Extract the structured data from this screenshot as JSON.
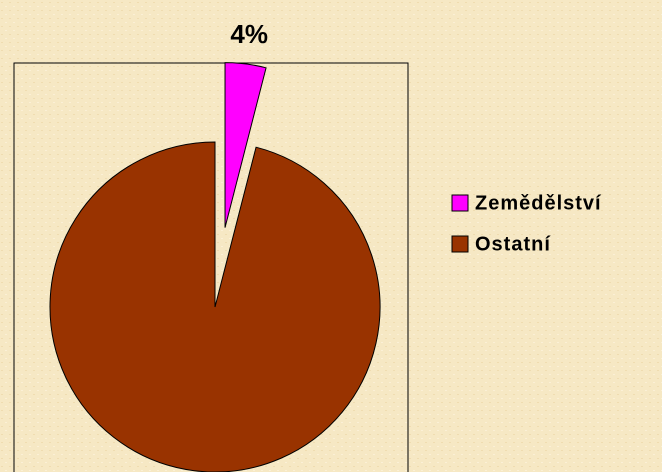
{
  "chart_data": {
    "type": "pie",
    "categories": [
      "Zemědělství",
      "Ostatní"
    ],
    "values": [
      4,
      96
    ],
    "value_labels": [
      "4%",
      null
    ],
    "colors": [
      "#ff00ff",
      "#993300"
    ],
    "explode": [
      true,
      false
    ],
    "legend": "right"
  }
}
